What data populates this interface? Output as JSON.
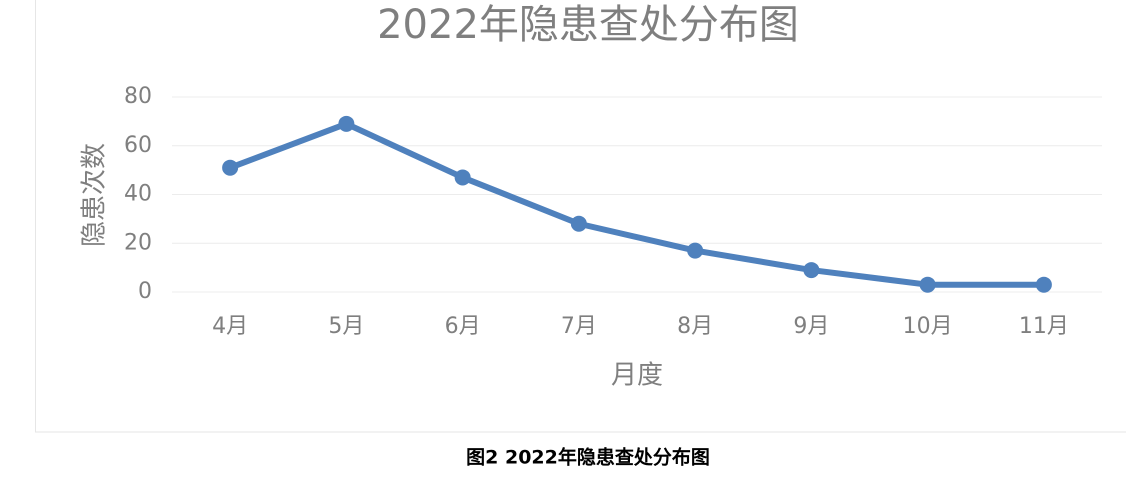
{
  "chart_data": {
    "type": "line",
    "title": "2022年隐患查处分布图",
    "x_label": "月度",
    "y_label": "隐患次数",
    "categories": [
      "4月",
      "5月",
      "6月",
      "7月",
      "8月",
      "9月",
      "10月",
      "11月"
    ],
    "series": [
      {
        "name": "隐患次数",
        "color": "#4f81bd",
        "values": [
          51,
          69,
          47,
          28,
          17,
          9,
          3,
          3
        ]
      }
    ],
    "ylim": [
      0,
      80
    ],
    "yticks": [
      0,
      20,
      40,
      60,
      80
    ],
    "grid": true
  },
  "caption": "图2  2022年隐患查处分布图"
}
